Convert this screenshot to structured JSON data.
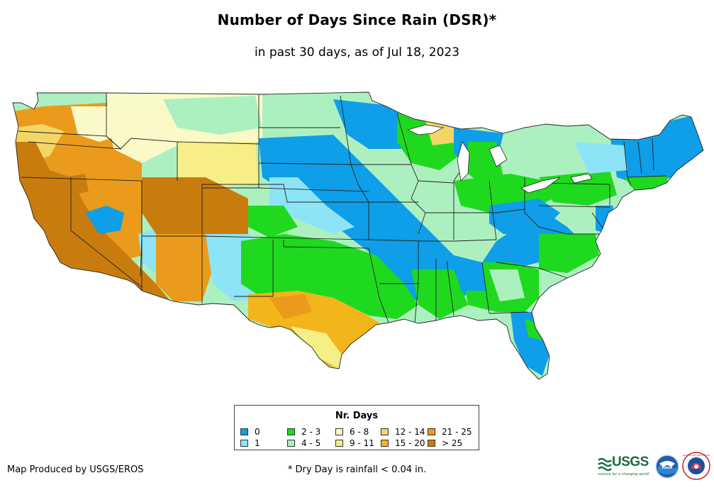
{
  "title": "Number of Days Since Rain (DSR)*",
  "subtitle": "in past 30 days, as of Jul 18, 2023",
  "legend": {
    "title": "Nr. Days",
    "items": [
      {
        "label": "0",
        "color": "#0f9ee8"
      },
      {
        "label": "1",
        "color": "#8de4f6"
      },
      {
        "label": "2 - 3",
        "color": "#1fd91f"
      },
      {
        "label": "4 - 5",
        "color": "#adf0c0"
      },
      {
        "label": "6 - 8",
        "color": "#fbf9c8"
      },
      {
        "label": "9 - 11",
        "color": "#f6ee86"
      },
      {
        "label": "12 - 14",
        "color": "#f4d667"
      },
      {
        "label": "15 - 20",
        "color": "#f2b51a"
      },
      {
        "label": "21 - 25",
        "color": "#eb9b1b"
      },
      {
        "label": "> 25",
        "color": "#c97c0e"
      }
    ]
  },
  "footer": {
    "producer": "Map Produced by USGS/EROS",
    "note": "* Dry Day is rainfall < 0.04 in."
  },
  "logos": {
    "usgs_text": "USGS",
    "usgs_tagline": "science for a changing world",
    "noaa": "noaa",
    "nws": "NATIONAL WEATHER SERVICE"
  }
}
